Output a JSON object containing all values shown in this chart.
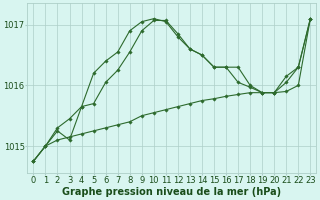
{
  "xlabel": "Graphe pression niveau de la mer (hPa)",
  "x": [
    0,
    1,
    2,
    3,
    4,
    5,
    6,
    7,
    8,
    9,
    10,
    11,
    12,
    13,
    14,
    15,
    16,
    17,
    18,
    19,
    20,
    21,
    22,
    23
  ],
  "line1": [
    1014.75,
    1015.0,
    1015.1,
    1015.15,
    1015.2,
    1015.25,
    1015.3,
    1015.35,
    1015.4,
    1015.5,
    1015.55,
    1015.6,
    1015.65,
    1015.7,
    1015.75,
    1015.78,
    1015.82,
    1015.85,
    1015.88,
    1015.88,
    1015.88,
    1015.9,
    1016.0,
    1017.1
  ],
  "line2": [
    1014.75,
    1015.0,
    1015.3,
    1015.45,
    1015.65,
    1016.2,
    1016.4,
    1016.55,
    1016.9,
    1017.05,
    1017.1,
    1017.05,
    1016.8,
    1016.6,
    1016.5,
    1016.3,
    1016.3,
    1016.3,
    1016.0,
    1015.88,
    1015.88,
    1016.05,
    1016.3,
    1017.1
  ],
  "line3": [
    1014.75,
    1015.0,
    1015.25,
    1015.1,
    1015.65,
    1015.7,
    1016.05,
    1016.25,
    1016.55,
    1016.9,
    1017.07,
    1017.07,
    1016.85,
    1016.6,
    1016.5,
    1016.3,
    1016.3,
    1016.05,
    1015.97,
    1015.88,
    1015.88,
    1016.15,
    1016.3,
    1017.1
  ],
  "line_color": "#2d6a2d",
  "bg_color": "#d8f5f0",
  "grid_color": "#aecfc8",
  "ylim_min": 1014.55,
  "ylim_max": 1017.35,
  "yticks": [
    1015,
    1016,
    1017
  ],
  "marker": "D",
  "marker_size": 1.8,
  "line_width": 0.8,
  "label_fontsize": 7.0,
  "tick_fontsize": 6.0,
  "label_color": "#1a4d1a"
}
